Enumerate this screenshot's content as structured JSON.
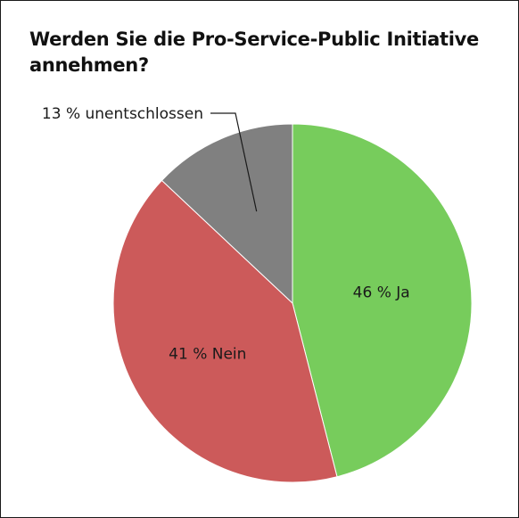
{
  "chart_data": {
    "type": "pie",
    "title": "Werden Sie die Pro-Service-Public Initiative annehmen?",
    "series": [
      {
        "values": [
          46,
          41,
          13
        ],
        "labels": [
          "46 % Ja",
          "41 % Nein",
          "13 % unentschlossen"
        ],
        "categories": [
          "Ja",
          "Nein",
          "unentschlossen"
        ],
        "colors": [
          "#77cc5c",
          "#cc5a5a",
          "#808080"
        ]
      }
    ],
    "start_angle": "12 o'clock",
    "direction": "clockwise",
    "callout": "13 % unentschlossen"
  }
}
